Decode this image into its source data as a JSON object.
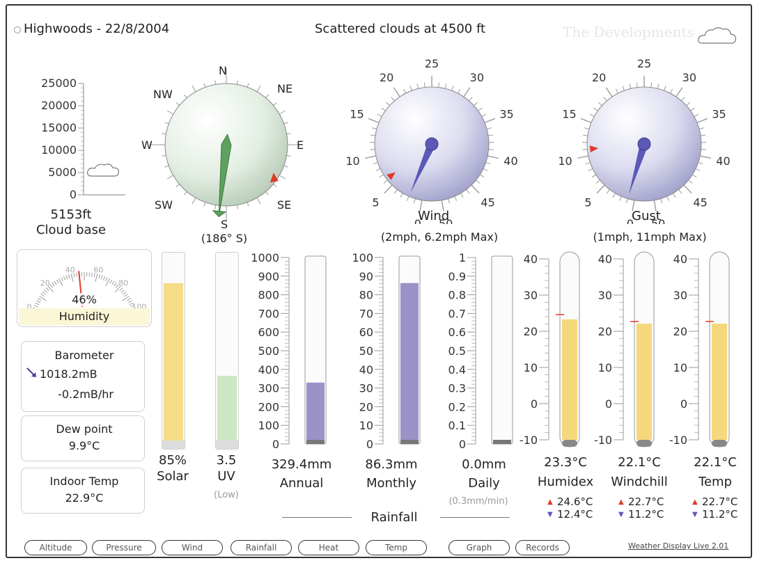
{
  "header": {
    "station": "Highwoods - 22/8/2004",
    "conditions": "Scattered clouds at 4500 ft",
    "watermark": "The Developments"
  },
  "cloudbase": {
    "ticks": [
      "25000",
      "20000",
      "15000",
      "10000",
      "5000",
      "0"
    ],
    "value_ft": 5153,
    "value": "5153ft",
    "label": "Cloud base"
  },
  "compass": {
    "N": "N",
    "NE": "NE",
    "E": "E",
    "SE": "SE",
    "S": "S",
    "SW": "SW",
    "W": "W",
    "NW": "NW",
    "direction_deg": 186,
    "value": "(186° S)"
  },
  "wind": {
    "ticks": [
      "0",
      "5",
      "10",
      "15",
      "20",
      "25",
      "30",
      "35",
      "40",
      "45",
      "50"
    ],
    "label": "Wind",
    "value": "(2mph, 6.2mph Max)",
    "current": 2,
    "max": 6.2
  },
  "gust": {
    "ticks": [
      "0",
      "5",
      "10",
      "15",
      "20",
      "25",
      "30",
      "35",
      "40",
      "45",
      "50"
    ],
    "label": "Gust",
    "value": "(1mph, 11mph Max)",
    "current": 1,
    "max": 11
  },
  "humidity": {
    "ticks": [
      "0",
      "20",
      "40",
      "60",
      "80",
      "100"
    ],
    "value": "46%",
    "percent": 46,
    "label": "Humidity"
  },
  "barometer": {
    "label": "Barometer",
    "value": "1018.2mB",
    "trend": "-0.2mB/hr"
  },
  "dewpoint": {
    "label": "Dew point",
    "value": "9.9°C"
  },
  "indoor": {
    "label": "Indoor Temp",
    "value": "22.9°C"
  },
  "solar": {
    "value": "85%",
    "label": "Solar",
    "percent": 85
  },
  "uv": {
    "value": "3.5",
    "label": "UV",
    "level": "(Low)",
    "fraction": 0.35
  },
  "rain_annual": {
    "ticks": [
      "1000",
      "900",
      "800",
      "700",
      "600",
      "500",
      "400",
      "300",
      "200",
      "100",
      "0"
    ],
    "value": "329.4mm",
    "label": "Annual",
    "amount": 329.4,
    "scale_max": 1000
  },
  "rain_monthly": {
    "ticks": [
      "100",
      "90",
      "80",
      "70",
      "60",
      "50",
      "40",
      "30",
      "20",
      "10",
      "0"
    ],
    "value": "86.3mm",
    "label": "Monthly",
    "amount": 86.3,
    "scale_max": 100
  },
  "rain_daily": {
    "ticks": [
      "1",
      "0.9",
      "0.8",
      "0.7",
      "0.6",
      "0.5",
      "0.4",
      "0.3",
      "0.2",
      "0.1",
      "0"
    ],
    "value": "0.0mm",
    "label": "Daily",
    "rate": "(0.3mm/min)",
    "amount": 0.0,
    "scale_max": 1
  },
  "rainfall_label": "Rainfall",
  "humidex": {
    "ticks": [
      "40",
      "30",
      "20",
      "10",
      "0",
      "-10"
    ],
    "value": "23.3°C",
    "label": "Humidex",
    "high": "24.6°C",
    "low": "12.4°C",
    "temp": 23.3,
    "marker": 24.6
  },
  "windchill": {
    "ticks": [
      "40",
      "30",
      "20",
      "10",
      "0",
      "-10"
    ],
    "value": "22.1°C",
    "label": "Windchill",
    "high": "22.7°C",
    "low": "11.2°C",
    "temp": 22.1,
    "marker": 22.7
  },
  "temp": {
    "ticks": [
      "40",
      "30",
      "20",
      "10",
      "0",
      "-10"
    ],
    "value": "22.1°C",
    "label": "Temp",
    "high": "22.7°C",
    "low": "11.2°C",
    "temp": 22.1,
    "marker": 22.7
  },
  "buttons": {
    "altitude": "Altitude",
    "pressure": "Pressure",
    "wind": "Wind",
    "rainfall": "Rainfall",
    "heat": "Heat",
    "temp": "Temp",
    "graph": "Graph",
    "records": "Records"
  },
  "footer": "Weather Display Live 2.01",
  "colors": {
    "solar_fill": "#f5dc86",
    "uv_fill": "#cde7c4",
    "rain_fill": "#9b92c8",
    "thermo_fill": "#f5d77c",
    "needle": "#5b58b8",
    "compass_needle": "#5fa05f",
    "marker_red": "#e03a2a"
  }
}
